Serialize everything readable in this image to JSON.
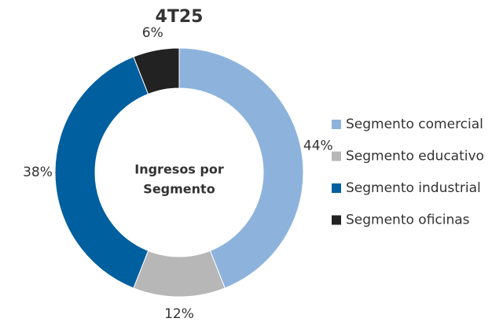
{
  "chart_data": {
    "type": "donut",
    "title": "4T25",
    "center_text": [
      "Ingresos por",
      "Segmento"
    ],
    "categories": [
      "Segmento comercial",
      "Segmento educativo",
      "Segmento industrial",
      "Segmento oficinas"
    ],
    "values": [
      44,
      12,
      38,
      6
    ],
    "value_labels": [
      "44%",
      "12%",
      "38%",
      "6%"
    ],
    "colors": [
      "#8db3dd",
      "#b7b7b7",
      "#005f9e",
      "#222222"
    ],
    "legend": "right"
  }
}
